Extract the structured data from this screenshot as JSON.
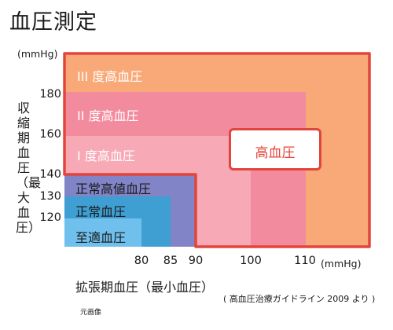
{
  "page": {
    "title": "血圧測定",
    "caption": "元画像"
  },
  "chart_data": {
    "type": "area",
    "title": "血圧測定",
    "xlabel": "拡張期血圧（最小血圧）",
    "ylabel": "収縮期血圧（最大血圧）",
    "x_unit": "(mmHg)",
    "y_unit": "(mmHg)",
    "source": "( 高血圧治療ガイドライン 2009 より )",
    "y_ticks": [
      180,
      160,
      140,
      130,
      120
    ],
    "x_ticks": [
      80,
      85,
      90,
      100,
      110
    ],
    "zones": [
      {
        "key": "grade3",
        "label": "III 度高血圧",
        "sbp_min": 180,
        "dbp_min": 110,
        "color": "#f9a978"
      },
      {
        "key": "grade2",
        "label": "II 度高血圧",
        "sbp_min": 160,
        "dbp_min": 100,
        "color": "#f38b9e"
      },
      {
        "key": "grade1",
        "label": "I 度高血圧",
        "sbp_min": 140,
        "dbp_min": 90,
        "color": "#f7a9b6"
      },
      {
        "key": "high_normal",
        "label": "正常高値血圧",
        "sbp_min": 130,
        "dbp_min": 85,
        "color": "#8184c6"
      },
      {
        "key": "normal",
        "label": "正常血圧",
        "sbp_min": 120,
        "dbp_min": 80,
        "color": "#3f9fd2"
      },
      {
        "key": "optimal",
        "label": "至適血圧",
        "sbp_max": 120,
        "dbp_max": 80,
        "color": "#6fc0ec"
      }
    ],
    "hypertension_region": {
      "label": "高血圧",
      "sbp_min": 140,
      "dbp_min": 90,
      "outline_color": "#e2453b"
    }
  }
}
